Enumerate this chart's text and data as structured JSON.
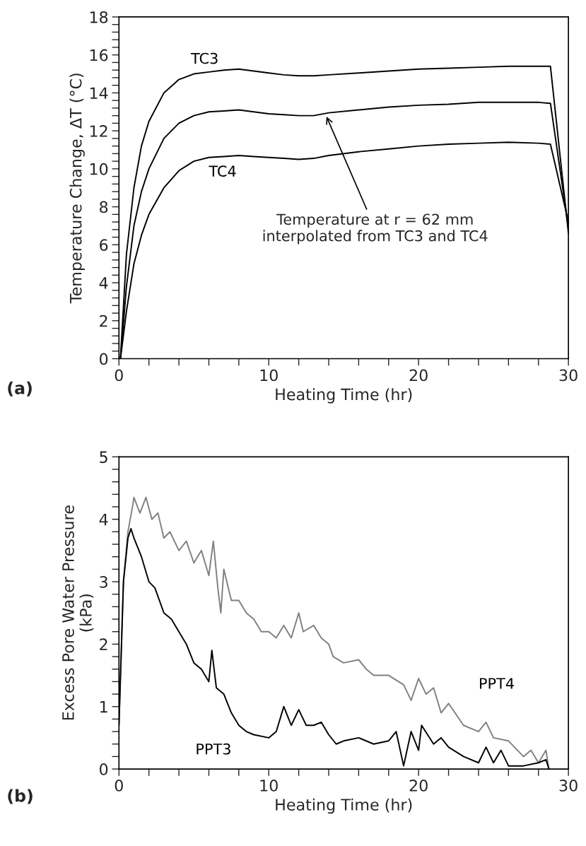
{
  "chart_data": [
    {
      "type": "line",
      "xlabel": "Heating Time (hr)",
      "ylabel": "Temperature Change, ΔT (°C)",
      "xlim": [
        0,
        30
      ],
      "ylim": [
        0,
        18
      ],
      "xticks": [
        0,
        {
          "value": 2,
          "label": null
        },
        {
          "value": 4,
          "label": null
        },
        {
          "value": 6,
          "label": null
        },
        {
          "value": 8,
          "label": null
        },
        10,
        {
          "value": 12,
          "label": null
        },
        {
          "value": 14,
          "label": null
        },
        {
          "value": 16,
          "label": null
        },
        {
          "value": 18,
          "label": null
        },
        20,
        {
          "value": 22,
          "label": null
        },
        {
          "value": 24,
          "label": null
        },
        {
          "value": 26,
          "label": null
        },
        {
          "value": 28,
          "label": null
        },
        30
      ],
      "yticks": [
        0,
        {
          "value": 0.4,
          "label": null
        },
        {
          "value": 0.8,
          "label": null
        },
        {
          "value": 1.2,
          "label": null
        },
        {
          "value": 1.6,
          "label": null
        },
        2,
        {
          "value": 2.4,
          "label": null
        },
        {
          "value": 2.8,
          "label": null
        },
        {
          "value": 3.2,
          "label": null
        },
        {
          "value": 3.6,
          "label": null
        },
        4,
        {
          "value": 4.4,
          "label": null
        },
        {
          "value": 4.8,
          "label": null
        },
        {
          "value": 5.2,
          "label": null
        },
        {
          "value": 5.6,
          "label": null
        },
        6,
        {
          "value": 6.4,
          "label": null
        },
        {
          "value": 6.8,
          "label": null
        },
        {
          "value": 7.2,
          "label": null
        },
        {
          "value": 7.6,
          "label": null
        },
        8,
        {
          "value": 8.4,
          "label": null
        },
        {
          "value": 8.8,
          "label": null
        },
        {
          "value": 9.2,
          "label": null
        },
        {
          "value": 9.6,
          "label": null
        },
        10,
        {
          "value": 10.4,
          "label": null
        },
        {
          "value": 10.8,
          "label": null
        },
        {
          "value": 11.2,
          "label": null
        },
        {
          "value": 11.6,
          "label": null
        },
        12,
        {
          "value": 12.4,
          "label": null
        },
        {
          "value": 12.8,
          "label": null
        },
        {
          "value": 13.2,
          "label": null
        },
        {
          "value": 13.6,
          "label": null
        },
        14,
        {
          "value": 14.4,
          "label": null
        },
        {
          "value": 14.8,
          "label": null
        },
        {
          "value": 15.2,
          "label": null
        },
        {
          "value": 15.6,
          "label": null
        },
        16,
        {
          "value": 16.4,
          "label": null
        },
        {
          "value": 16.8,
          "label": null
        },
        {
          "value": 17.2,
          "label": null
        },
        {
          "value": 17.6,
          "label": null
        },
        18
      ],
      "grid": false,
      "legend": false,
      "marker": "none",
      "line_style": "solid",
      "x": [
        0.1,
        0.5,
        1,
        1.5,
        2,
        3,
        4,
        5,
        6,
        7,
        8,
        9,
        10,
        11,
        12,
        13,
        14,
        16,
        18,
        20,
        22,
        24,
        26,
        28,
        28.8,
        30
      ],
      "series": [
        {
          "name": "TC3",
          "color": "#000000",
          "values": [
            0,
            5.5,
            9,
            11.2,
            12.5,
            14,
            14.7,
            15,
            15.1,
            15.2,
            15.25,
            15.15,
            15.05,
            14.95,
            14.9,
            14.9,
            14.95,
            15.05,
            15.15,
            15.25,
            15.3,
            15.35,
            15.4,
            15.4,
            15.4,
            6.6
          ]
        },
        {
          "color": "#000000",
          "values": [
            0,
            3.8,
            7,
            8.8,
            10,
            11.6,
            12.4,
            12.8,
            13,
            13.05,
            13.1,
            13,
            12.9,
            12.85,
            12.8,
            12.8,
            12.95,
            13.1,
            13.25,
            13.35,
            13.4,
            13.5,
            13.5,
            13.5,
            13.45,
            6.9
          ]
        },
        {
          "name": "TC4",
          "color": "#000000",
          "values": [
            0,
            2.5,
            5,
            6.5,
            7.6,
            9,
            9.9,
            10.4,
            10.6,
            10.65,
            10.7,
            10.65,
            10.6,
            10.55,
            10.5,
            10.55,
            10.7,
            10.9,
            11.05,
            11.2,
            11.3,
            11.35,
            11.4,
            11.35,
            11.3,
            7.2
          ]
        }
      ],
      "annotations": [
        {
          "text": "Temperature at r = 62 mm\ninterpolated from TC3 and TC4",
          "x": 13.8,
          "y": 12.85
        },
        "(a)"
      ]
    },
    {
      "type": "line",
      "xlabel": "Heating Time (hr)",
      "ylabel": "Excess Pore Water Pressure\n(kPa)",
      "xlim": [
        0,
        30
      ],
      "ylim": [
        0,
        5
      ],
      "xticks": [
        0,
        {
          "value": 2,
          "label": null
        },
        {
          "value": 4,
          "label": null
        },
        {
          "value": 6,
          "label": null
        },
        {
          "value": 8,
          "label": null
        },
        10,
        {
          "value": 12,
          "label": null
        },
        {
          "value": 14,
          "label": null
        },
        {
          "value": 16,
          "label": null
        },
        {
          "value": 18,
          "label": null
        },
        20,
        {
          "value": 22,
          "label": null
        },
        {
          "value": 24,
          "label": null
        },
        {
          "value": 26,
          "label": null
        },
        {
          "value": 28,
          "label": null
        },
        30
      ],
      "yticks": [
        0,
        {
          "value": 0.2,
          "label": null
        },
        {
          "value": 0.4,
          "label": null
        },
        {
          "value": 0.6,
          "label": null
        },
        {
          "value": 0.8,
          "label": null
        },
        1,
        {
          "value": 1.2,
          "label": null
        },
        {
          "value": 1.4,
          "label": null
        },
        {
          "value": 1.6,
          "label": null
        },
        {
          "value": 1.8,
          "label": null
        },
        2,
        {
          "value": 2.2,
          "label": null
        },
        {
          "value": 2.4,
          "label": null
        },
        {
          "value": 2.6,
          "label": null
        },
        {
          "value": 2.8,
          "label": null
        },
        3,
        {
          "value": 3.2,
          "label": null
        },
        {
          "value": 3.4,
          "label": null
        },
        {
          "value": 3.6,
          "label": null
        },
        {
          "value": 3.8,
          "label": null
        },
        4,
        {
          "value": 4.2,
          "label": null
        },
        {
          "value": 4.4,
          "label": null
        },
        {
          "value": 4.6,
          "label": null
        },
        {
          "value": 4.8,
          "label": null
        },
        5
      ],
      "grid": false,
      "legend": false,
      "marker": "none",
      "line_style": "solid",
      "series": [
        {
          "name": "PPT4",
          "color": "#808080",
          "x": [
            0,
            0.3,
            0.6,
            0.9,
            1.0,
            1.4,
            1.8,
            2.2,
            2.6,
            3,
            3.4,
            4,
            4.5,
            5,
            5.5,
            6,
            6.3,
            6.6,
            6.8,
            7,
            7.5,
            8,
            8.5,
            9,
            9.5,
            10,
            10.5,
            11,
            11.5,
            12,
            12.3,
            13,
            13.5,
            14,
            14.3,
            15,
            16,
            16.5,
            17,
            18,
            19,
            19.5,
            20,
            20.5,
            21,
            21.5,
            22,
            23,
            24,
            24.5,
            25,
            26,
            27,
            27.5,
            28,
            28.5,
            28.7
          ],
          "values": [
            0.7,
            3.0,
            3.8,
            4.2,
            4.35,
            4.1,
            4.35,
            4.0,
            4.1,
            3.7,
            3.8,
            3.5,
            3.65,
            3.3,
            3.5,
            3.1,
            3.65,
            2.9,
            2.5,
            3.2,
            2.7,
            2.7,
            2.5,
            2.4,
            2.2,
            2.2,
            2.1,
            2.3,
            2.1,
            2.5,
            2.2,
            2.3,
            2.1,
            2.0,
            1.8,
            1.7,
            1.75,
            1.6,
            1.5,
            1.5,
            1.35,
            1.1,
            1.45,
            1.2,
            1.3,
            0.9,
            1.05,
            0.7,
            0.6,
            0.75,
            0.5,
            0.45,
            0.2,
            0.3,
            0.1,
            0.3,
            0
          ]
        },
        {
          "name": "PPT3",
          "color": "#000000",
          "x": [
            0,
            0.3,
            0.6,
            0.8,
            1.0,
            1.5,
            2,
            2.4,
            3,
            3.5,
            4,
            4.5,
            5,
            5.5,
            6,
            6.2,
            6.5,
            7,
            7.5,
            8,
            8.5,
            9,
            10,
            10.5,
            11,
            11.5,
            12,
            12.5,
            13,
            13.5,
            14,
            14.5,
            15,
            16,
            17,
            18,
            18.5,
            19,
            19.5,
            20,
            20.2,
            21,
            21.5,
            22,
            23,
            24,
            24.5,
            25,
            25.5,
            26,
            27,
            28,
            28.5,
            28.7
          ],
          "values": [
            0.7,
            3.0,
            3.7,
            3.85,
            3.7,
            3.4,
            3.0,
            2.9,
            2.5,
            2.4,
            2.2,
            2.0,
            1.7,
            1.6,
            1.4,
            1.9,
            1.3,
            1.2,
            0.9,
            0.7,
            0.6,
            0.55,
            0.5,
            0.6,
            1.0,
            0.7,
            0.95,
            0.7,
            0.7,
            0.75,
            0.55,
            0.4,
            0.45,
            0.5,
            0.4,
            0.45,
            0.6,
            0.05,
            0.6,
            0.3,
            0.7,
            0.4,
            0.5,
            0.35,
            0.2,
            0.1,
            0.35,
            0.1,
            0.3,
            0.05,
            0.05,
            0.1,
            0.15,
            0
          ]
        }
      ],
      "annotations": [
        "(b)"
      ]
    }
  ]
}
